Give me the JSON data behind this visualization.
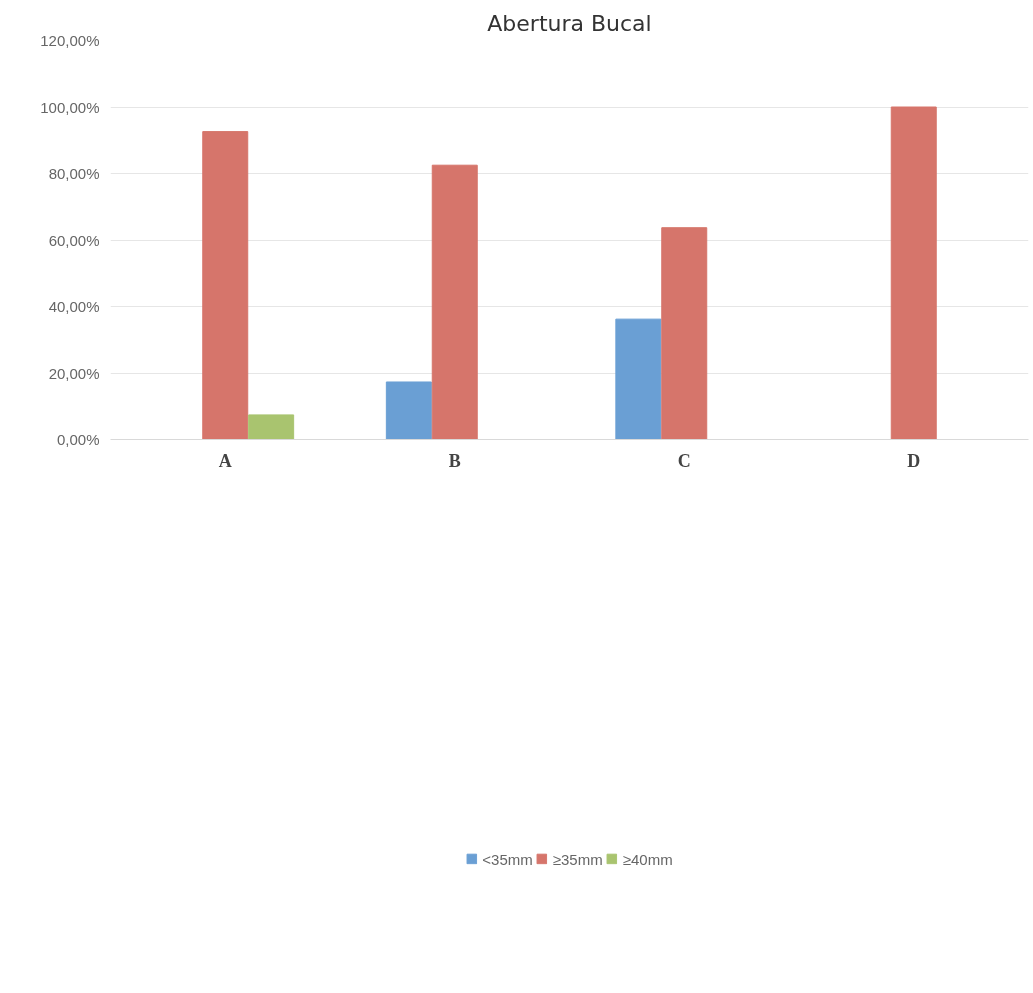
{
  "chart_data": {
    "type": "bar",
    "title": "Abertura Bucal",
    "categories": [
      "A",
      "B",
      "C",
      "D"
    ],
    "series": [
      {
        "name": "<35mm",
        "color": "#6a9fd4",
        "values": [
          null,
          17.3,
          36.2,
          null
        ]
      },
      {
        "name": "≥35mm",
        "color": "#d6756b",
        "values": [
          92.6,
          82.5,
          63.7,
          100
        ]
      },
      {
        "name": "≥40mm",
        "color": "#a9c46f",
        "values": [
          7.4,
          null,
          null,
          null
        ]
      }
    ],
    "ylim": [
      0,
      120
    ],
    "yticks": [
      {
        "value": 0,
        "label": "0,00%"
      },
      {
        "value": 20,
        "label": "20,00%"
      },
      {
        "value": 40,
        "label": "40,00%"
      },
      {
        "value": 60,
        "label": "60,00%"
      },
      {
        "value": 80,
        "label": "80,00%"
      },
      {
        "value": 100,
        "label": "100,00%"
      },
      {
        "value": 120,
        "label": "120,00%"
      }
    ],
    "grid": "y",
    "legend": "bottom"
  }
}
